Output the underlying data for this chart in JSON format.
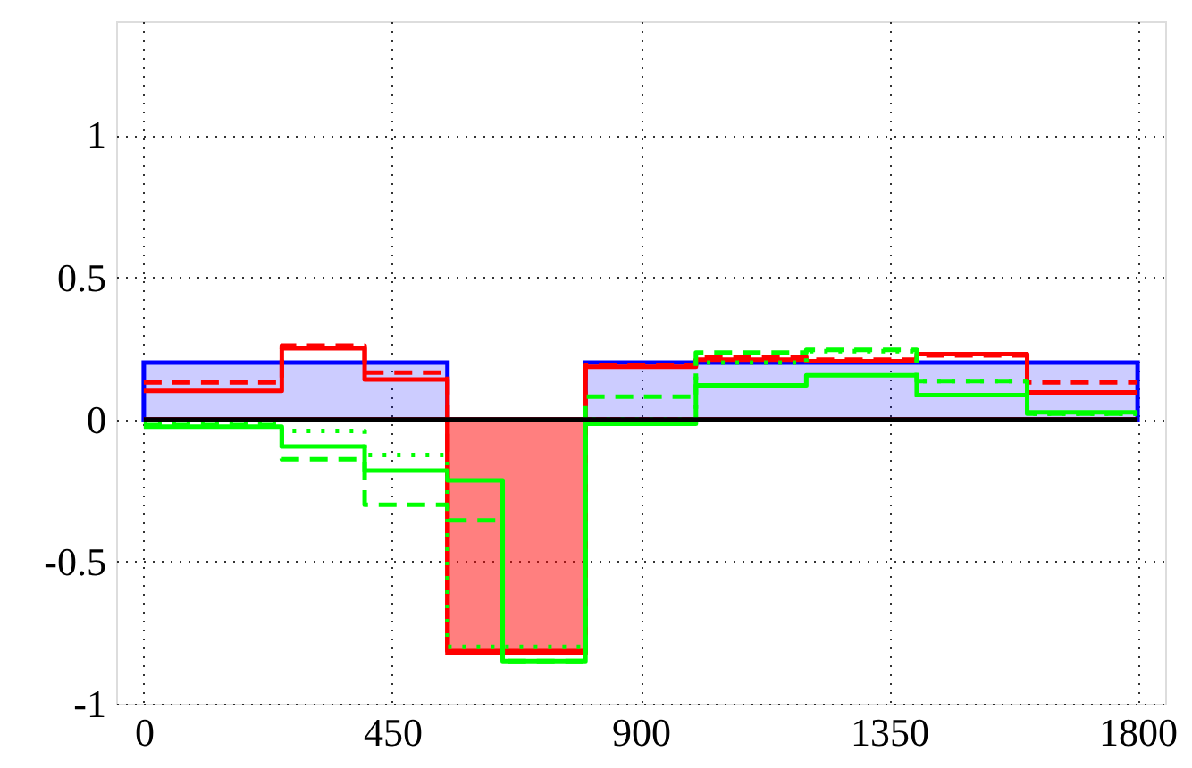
{
  "chart_data": {
    "type": "step",
    "x": [
      0,
      250,
      400,
      550,
      650,
      800,
      1000,
      1200,
      1400,
      1600,
      1800
    ],
    "xlim": [
      -50,
      1850
    ],
    "ylim": [
      -1,
      1.4
    ],
    "xticks": [
      0,
      450,
      900,
      1350,
      1800
    ],
    "yticks": [
      -1,
      -0.5,
      0,
      0.5,
      1
    ],
    "grid": true,
    "series": [
      {
        "type": "area",
        "color": "#0000ff",
        "values": [
          0.2,
          0.2,
          0.2,
          0,
          0,
          0.2,
          0.2,
          0.2,
          0.2,
          0.2,
          0.2
        ]
      },
      {
        "type": "area",
        "color": "#ff0000",
        "values": [
          0,
          0,
          0,
          -0.82,
          -0.82,
          0,
          0,
          0,
          0,
          0,
          0
        ]
      },
      {
        "color": "#ff0000",
        "line_style": "solid",
        "values": [
          0.1,
          0.25,
          0.14,
          -0.815,
          -0.815,
          0.185,
          0.21,
          0.205,
          0.23,
          0.095,
          0.095
        ]
      },
      {
        "color": "#ff0000",
        "line_style": "dashed",
        "values": [
          0.13,
          0.26,
          0.165,
          -0.82,
          -0.82,
          0.19,
          0.22,
          0.21,
          0.225,
          0.13,
          0.13
        ]
      },
      {
        "color": "#00ff00",
        "line_style": "solid",
        "values": [
          -0.025,
          -0.095,
          -0.18,
          -0.215,
          -0.85,
          -0.015,
          0.12,
          0.155,
          0.085,
          0.025,
          0.025
        ]
      },
      {
        "color": "#00ff00",
        "line_style": "dashed",
        "values": [
          -0.02,
          -0.14,
          -0.3,
          -0.355,
          -0.85,
          0.08,
          0.235,
          0.245,
          0.135,
          0.02,
          0.02
        ]
      },
      {
        "color": "#00ff00",
        "line_style": "dotted",
        "values": [
          -0.01,
          -0.04,
          -0.125,
          -0.8,
          -0.8,
          0,
          0.2,
          0.24,
          0.135,
          0.02,
          0.02
        ]
      },
      {
        "color": "#000000",
        "line_style": "solid",
        "values": [
          0,
          0,
          0,
          0,
          0,
          0,
          0,
          0,
          0,
          0,
          0
        ]
      }
    ]
  }
}
